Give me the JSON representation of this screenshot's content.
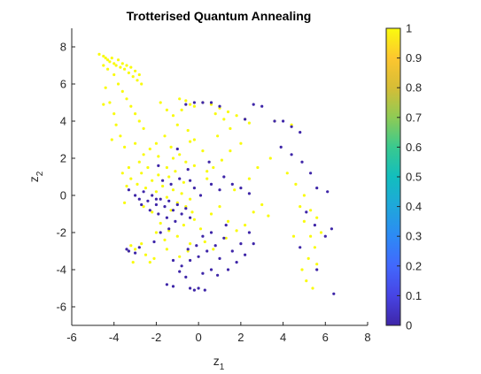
{
  "chart_data": {
    "type": "scatter",
    "title": "Trotterised Quantum Annealing",
    "xlabel": {
      "base": "z",
      "sub": "1"
    },
    "ylabel": {
      "base": "z",
      "sub": "2"
    },
    "xlim": [
      -6,
      8
    ],
    "ylim": [
      -7,
      9
    ],
    "xticks": [
      "-6",
      "-4",
      "-2",
      "0",
      "2",
      "4",
      "6",
      "8"
    ],
    "yticks": [
      "-6",
      "-4",
      "-2",
      "0",
      "2",
      "4",
      "6",
      "8"
    ],
    "colorbar": {
      "colormap": "parula",
      "range": [
        0,
        1
      ],
      "ticks": [
        "0",
        "0.1",
        "0.2",
        "0.3",
        "0.4",
        "0.5",
        "0.6",
        "0.7",
        "0.8",
        "0.9",
        "1"
      ]
    },
    "grid": false,
    "colors": {
      "high": "#f9fb0e",
      "low": "#3e26a8"
    },
    "series": [
      {
        "value": 1,
        "points": [
          [
            -4.7,
            7.6
          ],
          [
            -4.5,
            7.5
          ],
          [
            -4.4,
            7.4
          ],
          [
            -4.3,
            7.3
          ],
          [
            -4.2,
            7.2
          ],
          [
            -4.1,
            7.4
          ],
          [
            -4.0,
            7.1
          ],
          [
            -3.9,
            7.0
          ],
          [
            -3.8,
            7.3
          ],
          [
            -3.7,
            6.9
          ],
          [
            -3.6,
            7.1
          ],
          [
            -3.5,
            6.8
          ],
          [
            -3.4,
            7.0
          ],
          [
            -3.3,
            6.6
          ],
          [
            -3.2,
            6.9
          ],
          [
            -3.1,
            6.4
          ],
          [
            -3.0,
            6.7
          ],
          [
            -2.9,
            6.2
          ],
          [
            -2.8,
            6.5
          ],
          [
            -2.7,
            6.0
          ],
          [
            -4.5,
            7.0
          ],
          [
            -4.3,
            6.8
          ],
          [
            -4.0,
            6.5
          ],
          [
            -3.8,
            6.0
          ],
          [
            -3.6,
            5.6
          ],
          [
            -3.4,
            5.2
          ],
          [
            -3.2,
            4.8
          ],
          [
            -3.0,
            4.4
          ],
          [
            -2.8,
            4.0
          ],
          [
            -2.6,
            3.6
          ],
          [
            -4.4,
            5.8
          ],
          [
            -4.2,
            5.0
          ],
          [
            -4.0,
            4.4
          ],
          [
            -3.9,
            3.8
          ],
          [
            -3.7,
            3.2
          ],
          [
            -3.5,
            2.6
          ],
          [
            -4.5,
            4.9
          ],
          [
            -4.1,
            3.0
          ],
          [
            -3.0,
            2.8
          ],
          [
            -2.6,
            2.2
          ],
          [
            -1.8,
            5.0
          ],
          [
            -1.5,
            4.6
          ],
          [
            -1.2,
            4.3
          ],
          [
            -0.9,
            5.2
          ],
          [
            -0.6,
            5.1
          ],
          [
            -0.4,
            4.9
          ],
          [
            -0.2,
            4.8
          ],
          [
            0.2,
            5.0
          ],
          [
            0.6,
            4.9
          ],
          [
            1.0,
            4.7
          ],
          [
            1.4,
            4.5
          ],
          [
            1.8,
            4.3
          ],
          [
            2.2,
            4.1
          ],
          [
            2.4,
            3.9
          ],
          [
            1.2,
            4.1
          ],
          [
            0.8,
            4.4
          ],
          [
            -0.8,
            4.6
          ],
          [
            -1.0,
            3.8
          ],
          [
            -0.5,
            3.5
          ],
          [
            -0.2,
            3.0
          ],
          [
            -1.6,
            3.2
          ],
          [
            -2.0,
            2.8
          ],
          [
            -2.3,
            2.5
          ],
          [
            -1.9,
            2.1
          ],
          [
            -1.3,
            2.6
          ],
          [
            -0.9,
            2.2
          ],
          [
            -0.6,
            1.8
          ],
          [
            -1.5,
            1.5
          ],
          [
            -2.7,
            1.2
          ],
          [
            -3.3,
            1.5
          ],
          [
            -3.6,
            1.2
          ],
          [
            -3.2,
            0.9
          ],
          [
            -2.9,
            0.6
          ],
          [
            -2.5,
            0.4
          ],
          [
            -2.2,
            0.8
          ],
          [
            -2.0,
            0.2
          ],
          [
            -1.7,
            0.5
          ],
          [
            -1.5,
            -0.1
          ],
          [
            -1.2,
            0.3
          ],
          [
            -1.0,
            -0.4
          ],
          [
            -0.8,
            0.1
          ],
          [
            -0.6,
            -0.6
          ],
          [
            -0.4,
            -0.2
          ],
          [
            -2.4,
            1.5
          ],
          [
            -2.8,
            1.8
          ],
          [
            -3.4,
            0.5
          ],
          [
            -1.9,
            1.1
          ],
          [
            -1.4,
            1.0
          ],
          [
            -1.1,
            1.3
          ],
          [
            -0.7,
            0.7
          ],
          [
            -1.8,
            -1.5
          ],
          [
            -1.4,
            -1.9
          ],
          [
            -1.0,
            -2.2
          ],
          [
            -0.7,
            -1.6
          ],
          [
            -0.4,
            -2.6
          ],
          [
            -1.6,
            -2.4
          ],
          [
            -2.0,
            -2.0
          ],
          [
            -3.2,
            -2.7
          ],
          [
            -3.0,
            -2.9
          ],
          [
            -3.3,
            -3.0
          ],
          [
            -2.7,
            -2.6
          ],
          [
            -2.5,
            -3.2
          ],
          [
            -3.1,
            -3.6
          ],
          [
            -2.3,
            -3.6
          ],
          [
            -2.1,
            -3.4
          ],
          [
            -1.5,
            -2.9
          ],
          [
            -0.2,
            -1.3
          ],
          [
            0.1,
            -1.8
          ],
          [
            -0.9,
            -3.3
          ],
          [
            -0.5,
            -3.0
          ],
          [
            0.6,
            -1.0
          ],
          [
            1.0,
            -0.6
          ],
          [
            1.4,
            -1.4
          ],
          [
            1.8,
            -1.9
          ],
          [
            2.2,
            -1.6
          ],
          [
            2.6,
            -0.9
          ],
          [
            3.0,
            -0.5
          ],
          [
            3.3,
            -1.1
          ],
          [
            0.4,
            0.9
          ],
          [
            0.7,
            1.5
          ],
          [
            1.1,
            1.9
          ],
          [
            1.5,
            2.4
          ],
          [
            2.0,
            2.8
          ],
          [
            0.2,
            2.4
          ],
          [
            -0.2,
            1.6
          ],
          [
            1.5,
            3.6
          ],
          [
            2.8,
            1.5
          ],
          [
            3.4,
            2.0
          ],
          [
            4.2,
            1.2
          ],
          [
            4.6,
            0.6
          ],
          [
            4.8,
            -0.6
          ],
          [
            5.0,
            -1.4
          ],
          [
            5.3,
            -2.2
          ],
          [
            5.5,
            -2.8
          ],
          [
            5.2,
            -3.4
          ],
          [
            4.9,
            -4.0
          ],
          [
            5.1,
            -4.6
          ],
          [
            5.4,
            -5.0
          ],
          [
            4.4,
            3.8
          ],
          [
            3.6,
            4.0
          ],
          [
            5.0,
            0.0
          ],
          [
            5.3,
            -0.8
          ],
          [
            5.6,
            -1.2
          ],
          [
            5.8,
            -2.0
          ],
          [
            5.6,
            -3.7
          ],
          [
            4.5,
            -2.2
          ],
          [
            0.9,
            3.2
          ],
          [
            1.7,
            0.3
          ],
          [
            2.4,
            0.9
          ],
          [
            -1.3,
            -0.8
          ],
          [
            -2.6,
            -0.6
          ],
          [
            -2.2,
            -0.9
          ],
          [
            -0.3,
            -0.9
          ],
          [
            0.3,
            -2.5
          ],
          [
            0.7,
            -2.9
          ],
          [
            1.3,
            -2.3
          ],
          [
            -3.5,
            -0.4
          ],
          [
            -1.2,
            2.0
          ],
          [
            -0.4,
            2.9
          ],
          [
            0.4,
            1.3
          ]
        ]
      },
      {
        "value": 0,
        "points": [
          [
            -3.3,
            0.3
          ],
          [
            -3.0,
            0.0
          ],
          [
            -2.8,
            -0.2
          ],
          [
            -2.6,
            0.2
          ],
          [
            -2.4,
            -0.3
          ],
          [
            -2.2,
            0.0
          ],
          [
            -2.0,
            -0.5
          ],
          [
            -1.8,
            -0.2
          ],
          [
            -1.6,
            -0.6
          ],
          [
            -1.4,
            -0.3
          ],
          [
            -1.2,
            -0.8
          ],
          [
            -1.0,
            -0.5
          ],
          [
            -0.8,
            -1.0
          ],
          [
            -0.6,
            -0.7
          ],
          [
            -0.4,
            -1.2
          ],
          [
            -1.9,
            -1.0
          ],
          [
            -1.5,
            -1.2
          ],
          [
            -1.1,
            -1.4
          ],
          [
            -2.3,
            -0.8
          ],
          [
            -2.7,
            -0.5
          ],
          [
            -1.7,
            0.8
          ],
          [
            -1.3,
            0.6
          ],
          [
            -0.9,
            0.9
          ],
          [
            -0.5,
            1.4
          ],
          [
            -0.2,
            0.4
          ],
          [
            -1.9,
            1.6
          ],
          [
            -1.0,
            2.5
          ],
          [
            -1.4,
            -1.8
          ],
          [
            -1.8,
            -2.0
          ],
          [
            -2.1,
            -2.5
          ],
          [
            -3.3,
            -3.0
          ],
          [
            -3.0,
            -3.1
          ],
          [
            -2.8,
            -2.8
          ],
          [
            -3.4,
            -2.9
          ],
          [
            -2.0,
            -0.2
          ],
          [
            -0.4,
            0.8
          ],
          [
            0.1,
            0.0
          ],
          [
            0.6,
            0.6
          ],
          [
            1.0,
            0.3
          ],
          [
            1.6,
            0.6
          ],
          [
            2.0,
            0.4
          ],
          [
            2.4,
            0.1
          ],
          [
            1.2,
            1.0
          ],
          [
            0.5,
            1.8
          ],
          [
            -0.6,
            4.9
          ],
          [
            -0.2,
            5.0
          ],
          [
            0.2,
            5.0
          ],
          [
            0.6,
            5.0
          ],
          [
            1.0,
            4.8
          ],
          [
            2.6,
            4.9
          ],
          [
            3.0,
            4.8
          ],
          [
            2.2,
            4.1
          ],
          [
            3.6,
            4.0
          ],
          [
            4.0,
            4.0
          ],
          [
            4.4,
            3.7
          ],
          [
            4.8,
            3.4
          ],
          [
            3.9,
            2.6
          ],
          [
            4.4,
            2.2
          ],
          [
            4.9,
            1.8
          ],
          [
            5.3,
            1.2
          ],
          [
            5.6,
            0.4
          ],
          [
            6.1,
            0.2
          ],
          [
            6.3,
            -1.8
          ],
          [
            6.0,
            -2.2
          ],
          [
            5.5,
            -1.6
          ],
          [
            5.1,
            -0.9
          ],
          [
            4.8,
            -2.8
          ],
          [
            5.6,
            -4.0
          ],
          [
            6.4,
            -5.3
          ],
          [
            -1.5,
            -4.8
          ],
          [
            -1.2,
            -4.9
          ],
          [
            -0.6,
            -4.4
          ],
          [
            -0.4,
            -5.0
          ],
          [
            -0.2,
            -5.1
          ],
          [
            0.0,
            -5.0
          ],
          [
            0.3,
            -5.1
          ],
          [
            -0.8,
            -3.8
          ],
          [
            -0.4,
            -3.5
          ],
          [
            0.0,
            -3.3
          ],
          [
            0.4,
            -3.0
          ],
          [
            0.8,
            -2.7
          ],
          [
            1.2,
            -2.3
          ],
          [
            0.2,
            -2.2
          ],
          [
            0.6,
            -2.0
          ],
          [
            1.6,
            -3.0
          ],
          [
            2.0,
            -2.6
          ],
          [
            2.4,
            -2.0
          ],
          [
            1.8,
            -3.6
          ],
          [
            1.4,
            -4.0
          ],
          [
            1.0,
            -3.4
          ],
          [
            0.6,
            -4.0
          ],
          [
            0.2,
            -4.2
          ],
          [
            0.9,
            -4.3
          ],
          [
            2.6,
            -2.6
          ],
          [
            -0.1,
            -2.7
          ],
          [
            -1.2,
            -3.5
          ],
          [
            -0.9,
            -4.1
          ],
          [
            -0.5,
            -2.9
          ],
          [
            2.2,
            -3.2
          ],
          [
            1.3,
            -1.6
          ]
        ]
      }
    ]
  }
}
